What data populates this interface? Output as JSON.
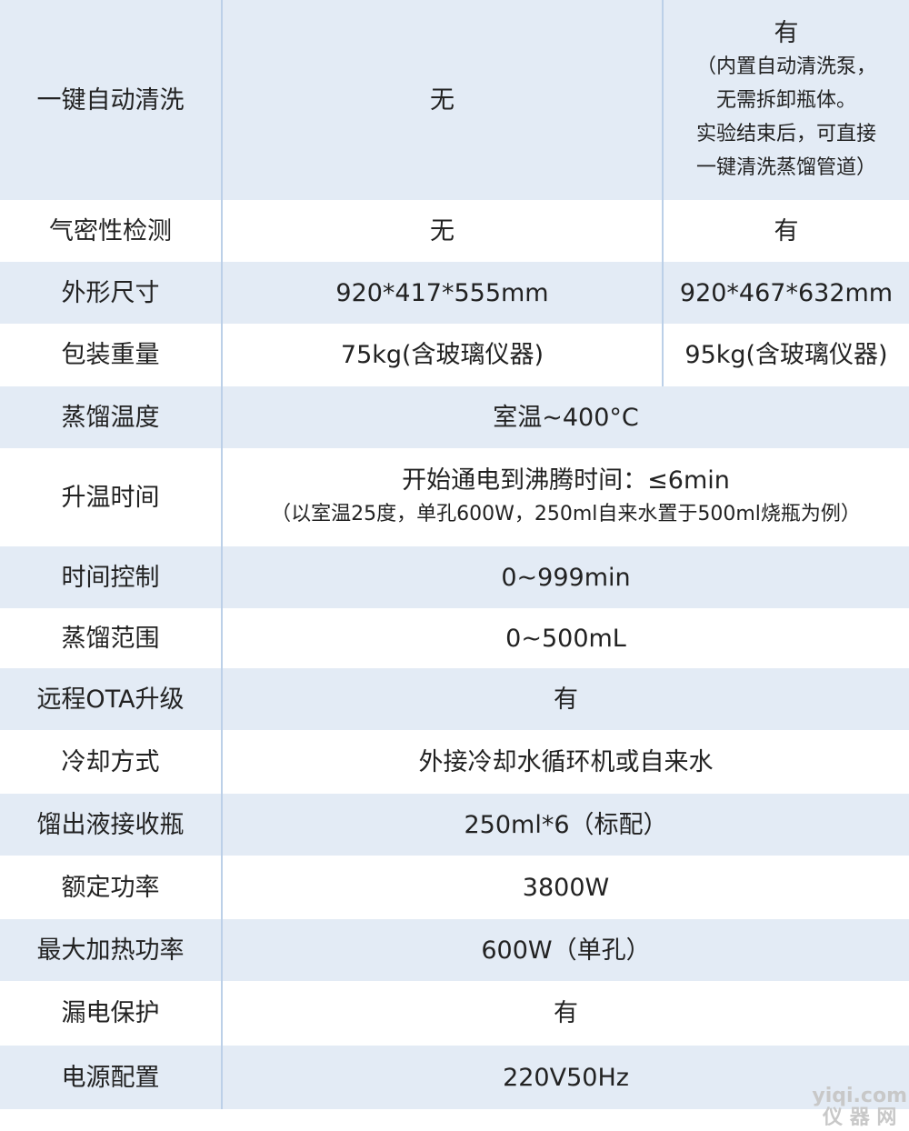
{
  "rows": [
    {
      "label": "一键自动清洗",
      "a": "无",
      "b": [
        "有",
        "（内置自动清洗泵，",
        "无需拆卸瓶体。",
        "实验结束后，可直接",
        "一键清洗蒸馏管道）"
      ]
    },
    {
      "label": "气密性检测",
      "a": "无",
      "b": "有"
    },
    {
      "label": "外形尺寸",
      "a": "920*417*555mm",
      "b": "920*467*632mm"
    },
    {
      "label": "包装重量",
      "a": "75kg(含玻璃仪器)",
      "b": "95kg(含玻璃仪器)"
    },
    {
      "label": "蒸馏温度",
      "v": "室温~400°C"
    },
    {
      "label": "升温时间",
      "v": "开始通电到沸腾时间：≤6min",
      "note": "（以室温25度，单孔600W，250ml自来水置于500ml烧瓶为例）"
    },
    {
      "label": "时间控制",
      "v": "0~999min"
    },
    {
      "label": "蒸馏范围",
      "v": "0~500mL"
    },
    {
      "label": "远程OTA升级",
      "v": "有"
    },
    {
      "label": "冷却方式",
      "v": "外接冷却水循环机或自来水"
    },
    {
      "label": "馏出液接收瓶",
      "v": "250ml*6（标配）"
    },
    {
      "label": "额定功率",
      "v": "3800W"
    },
    {
      "label": "最大加热功率",
      "v": "600W（单孔）"
    },
    {
      "label": "漏电保护",
      "v": "有"
    },
    {
      "label": "电源配置",
      "v": "220V50Hz"
    }
  ],
  "watermark": {
    "line1": "yiqi.com",
    "line2": "仪 器 网"
  },
  "colors": {
    "band": "#e3ebf5",
    "divider": "#bcd0e8"
  }
}
